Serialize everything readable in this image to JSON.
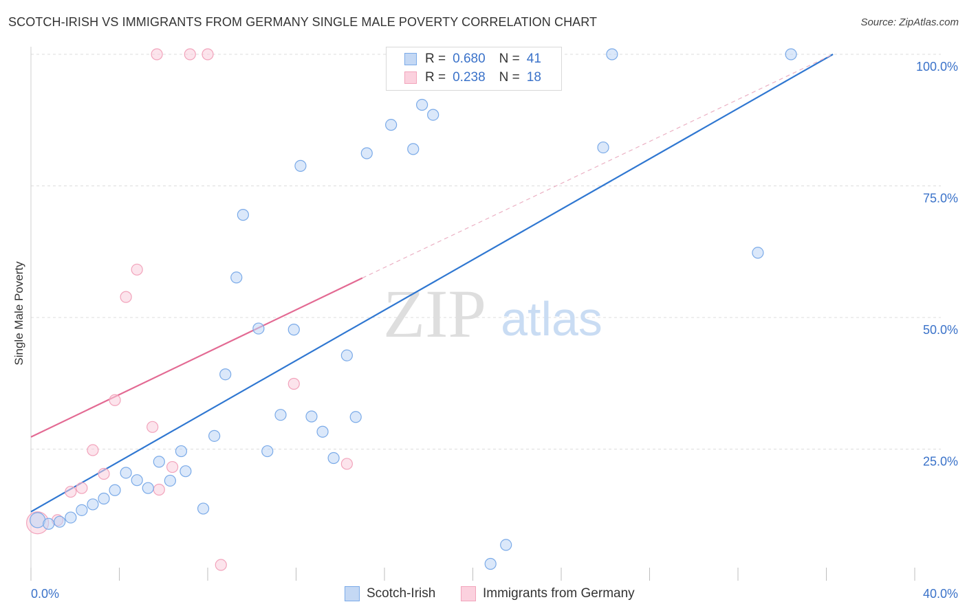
{
  "title": "SCOTCH-IRISH VS IMMIGRANTS FROM GERMANY SINGLE MALE POVERTY CORRELATION CHART",
  "source": "Source: ZipAtlas.com",
  "watermark": {
    "zip": "ZIP",
    "atlas": "atlas"
  },
  "legend": {
    "series1": {
      "r_label": "R =",
      "r_value": "0.680",
      "n_label": "N =",
      "n_value": "41"
    },
    "series2": {
      "r_label": "R =",
      "r_value": "0.238",
      "n_label": "N =",
      "n_value": "18"
    }
  },
  "chart_data": {
    "type": "scatter",
    "title": "SCOTCH-IRISH VS IMMIGRANTS FROM GERMANY SINGLE MALE POVERTY CORRELATION CHART",
    "xlabel": "",
    "ylabel": "Single Male Poverty",
    "xlim": [
      0,
      40
    ],
    "ylim": [
      0,
      100
    ],
    "x_tick_labels": [
      "0.0%",
      "40.0%"
    ],
    "y_tick_labels": [
      "25.0%",
      "50.0%",
      "75.0%",
      "100.0%"
    ],
    "y_ticks": [
      25,
      50,
      75,
      100
    ],
    "grid": true,
    "legend_position": "top-center",
    "colors": {
      "scotch_irish": "#7aaae8",
      "germany": "#f2a3bb",
      "blue_line": "#2f77d1",
      "pink_line": "#e36a93"
    },
    "series": [
      {
        "name": "Scotch-Irish",
        "color": "#7aaae8",
        "points": [
          [
            0.3,
            11.5
          ],
          [
            0.8,
            10.8
          ],
          [
            1.3,
            11.2
          ],
          [
            1.8,
            12.0
          ],
          [
            2.3,
            13.4
          ],
          [
            2.8,
            14.5
          ],
          [
            3.3,
            15.6
          ],
          [
            3.8,
            17.2
          ],
          [
            4.3,
            20.5
          ],
          [
            4.8,
            19.1
          ],
          [
            5.3,
            17.6
          ],
          [
            5.8,
            22.6
          ],
          [
            6.3,
            19.0
          ],
          [
            6.8,
            24.6
          ],
          [
            7.0,
            20.8
          ],
          [
            7.8,
            13.7
          ],
          [
            8.3,
            27.5
          ],
          [
            8.8,
            39.2
          ],
          [
            9.3,
            57.6
          ],
          [
            9.6,
            69.5
          ],
          [
            10.3,
            47.9
          ],
          [
            10.7,
            24.6
          ],
          [
            11.3,
            31.5
          ],
          [
            11.9,
            47.7
          ],
          [
            12.2,
            78.8
          ],
          [
            12.7,
            31.2
          ],
          [
            13.2,
            28.3
          ],
          [
            13.7,
            23.3
          ],
          [
            14.3,
            42.8
          ],
          [
            14.7,
            31.1
          ],
          [
            15.2,
            81.2
          ],
          [
            16.3,
            86.6
          ],
          [
            17.3,
            82.0
          ],
          [
            17.7,
            90.4
          ],
          [
            18.2,
            88.5
          ],
          [
            20.8,
            3.2
          ],
          [
            21.5,
            6.8
          ],
          [
            25.9,
            82.3
          ],
          [
            26.3,
            100
          ],
          [
            32.9,
            62.3
          ],
          [
            34.4,
            100
          ]
        ]
      },
      {
        "name": "Immigrants from Germany",
        "color": "#f2a3bb",
        "points": [
          [
            0.3,
            11.0
          ],
          [
            1.2,
            11.5
          ],
          [
            1.8,
            16.9
          ],
          [
            2.3,
            17.6
          ],
          [
            2.8,
            24.8
          ],
          [
            3.3,
            20.3
          ],
          [
            3.8,
            34.3
          ],
          [
            4.3,
            53.9
          ],
          [
            4.8,
            59.1
          ],
          [
            5.5,
            29.2
          ],
          [
            5.8,
            17.3
          ],
          [
            5.7,
            100
          ],
          [
            6.4,
            21.6
          ],
          [
            7.2,
            100
          ],
          [
            8.0,
            100
          ],
          [
            8.6,
            3.0
          ],
          [
            11.9,
            37.4
          ],
          [
            14.3,
            22.2
          ]
        ]
      }
    ],
    "trend_lines": [
      {
        "series": "Scotch-Irish",
        "x": [
          0,
          36.3
        ],
        "y": [
          13.1,
          100
        ]
      },
      {
        "series": "Immigrants from Germany",
        "x": [
          0,
          15.0
        ],
        "y": [
          27.3,
          57.5
        ],
        "dashed_extension_to": [
          36.3,
          100
        ]
      }
    ],
    "bottom_legend": [
      "Scotch-Irish",
      "Immigrants from Germany"
    ]
  }
}
